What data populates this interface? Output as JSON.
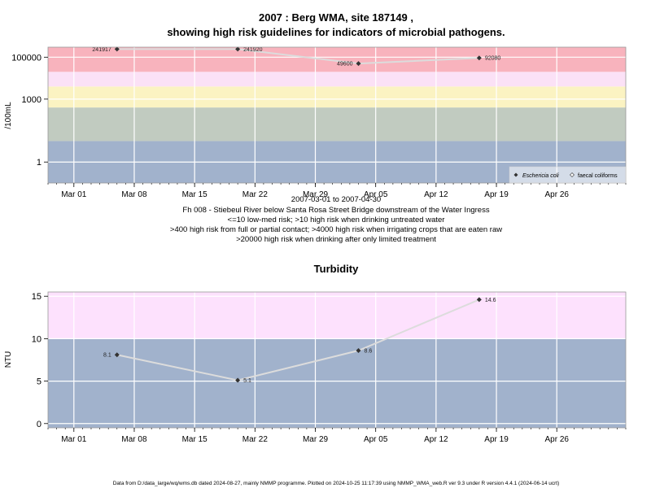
{
  "colors": {
    "band_red": "#f8b3bd",
    "band_pink": "#fbe1f6",
    "band_yellow": "#fbf3c2",
    "band_grey": "#c1cbc0",
    "band_blue": "#a1b2cc",
    "band_light_pink": "#fde1fd",
    "line": "#dcdcdc",
    "marker": "#333333",
    "grid": "#ffffff",
    "frame": "#999999"
  },
  "chart_data": [
    {
      "type": "line",
      "title_line1": "2007 : Berg WMA, site 187149 ,",
      "title_line2": "showing high risk guidelines for indicators of microbial pathogens.",
      "ylabel": "/100mL",
      "yscale": "log",
      "ylim": [
        0.1,
        300000
      ],
      "y_ticks": [
        1,
        1000,
        100000
      ],
      "y_tick_labels": [
        "1",
        "1000",
        "100000"
      ],
      "xlim": [
        "2007-02-26",
        "2007-05-04"
      ],
      "x_ticks": [
        "2007-03-01",
        "2007-03-08",
        "2007-03-15",
        "2007-03-22",
        "2007-03-29",
        "2007-04-05",
        "2007-04-12",
        "2007-04-19",
        "2007-04-26"
      ],
      "x_tick_labels": [
        "Mar 01",
        "Mar 08",
        "Mar 15",
        "Mar 22",
        "Mar 29",
        "Apr 05",
        "Apr 12",
        "Apr 19",
        "Apr 26"
      ],
      "grid": true,
      "bands": [
        {
          "from": 0.1,
          "to": 10,
          "color_key": "band_blue"
        },
        {
          "from": 10,
          "to": 400,
          "color_key": "band_grey"
        },
        {
          "from": 400,
          "to": 4000,
          "color_key": "band_yellow"
        },
        {
          "from": 4000,
          "to": 20000,
          "color_key": "band_pink"
        },
        {
          "from": 20000,
          "to": 300000,
          "color_key": "band_red"
        }
      ],
      "series": [
        {
          "name": "Eschericia coli",
          "x": [
            "2007-03-06",
            "2007-03-20",
            "2007-04-03",
            "2007-04-17"
          ],
          "y": [
            241917,
            241920,
            49600,
            92080
          ],
          "labels": [
            "241917",
            "241920",
            "49600",
            "92080"
          ],
          "label_side": [
            "left",
            "right",
            "left",
            "right"
          ]
        }
      ],
      "legend": {
        "placement": "bottom-right",
        "entries": [
          "Eschericia coli",
          "faecal coliforms"
        ]
      },
      "xlabel": "2007-03-01 to 2007-04-30",
      "notes": [
        "Fh 008 - Stiebeul River below Santa Rosa Street Bridge downstream of the Water Ingress",
        "<=10 low-med risk; >10 high risk when drinking untreated water",
        ">400 high risk from full or partial contact; >4000 high risk when irrigating crops that are eaten raw",
        ">20000 high risk when drinking after only limited treatment"
      ]
    },
    {
      "type": "line",
      "title": "Turbidity",
      "ylabel": "NTU",
      "yscale": "linear",
      "ylim": [
        -0.5,
        15.5
      ],
      "y_ticks": [
        0,
        5,
        10,
        15
      ],
      "y_tick_labels": [
        "0",
        "5",
        "10",
        "15"
      ],
      "xlim": [
        "2007-02-26",
        "2007-05-04"
      ],
      "x_ticks": [
        "2007-03-01",
        "2007-03-08",
        "2007-03-15",
        "2007-03-22",
        "2007-03-29",
        "2007-04-05",
        "2007-04-12",
        "2007-04-19",
        "2007-04-26"
      ],
      "x_tick_labels": [
        "Mar 01",
        "Mar 08",
        "Mar 15",
        "Mar 22",
        "Mar 29",
        "Apr 05",
        "Apr 12",
        "Apr 19",
        "Apr 26"
      ],
      "grid": true,
      "bands": [
        {
          "from": -0.5,
          "to": 10,
          "color_key": "band_blue"
        },
        {
          "from": 10,
          "to": 15.5,
          "color_key": "band_light_pink"
        }
      ],
      "series": [
        {
          "x": [
            "2007-03-06",
            "2007-03-20",
            "2007-04-03",
            "2007-04-17"
          ],
          "y": [
            8.1,
            5.1,
            8.6,
            14.6
          ],
          "labels": [
            "8.1",
            "5.1",
            "8.6",
            "14.6"
          ],
          "label_side": [
            "left",
            "right",
            "right",
            "right"
          ]
        }
      ]
    }
  ],
  "footer": "Data from D:/data_large/wq/wms.db dated 2024-08-27, mainly NMMP programme. Plotted on 2024-10-25 11:17:39 using NMMP_WMA_web.R ver 9.3 under R version 4.4.1 (2024-06-14 ucrt)"
}
